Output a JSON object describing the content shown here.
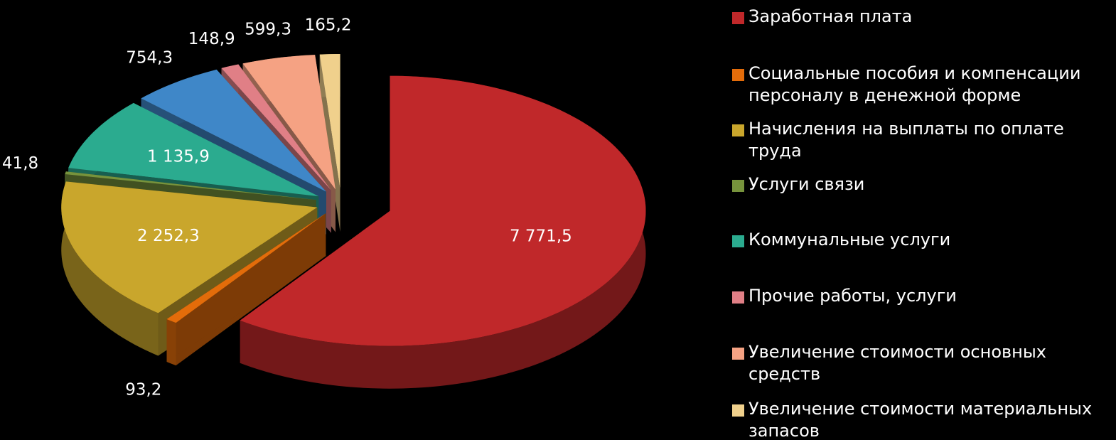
{
  "chart_data": {
    "type": "pie3d",
    "categories": [
      "Заработная плата",
      "Социальные пособия и компенсации персоналу в денежной форме",
      "Начисления на выплаты по оплате труда",
      "Услуги связи",
      "Коммунальные услуги",
      null,
      "Прочие работы, услуги",
      "Увеличение стоимости основных средств",
      "Увеличение стоимости материальных запасов"
    ],
    "values": [
      7771.5,
      93.2,
      2252.3,
      41.8,
      1135.9,
      754.3,
      148.9,
      599.3,
      165.2
    ],
    "value_labels": [
      "7 771,5",
      "93,2",
      "2 252,3",
      "41,8",
      "1 135,9",
      "754,3",
      "148,9",
      "599,3",
      "165,2"
    ],
    "colors": [
      "#c0282a",
      "#e36c0a",
      "#c9a62c",
      "#77933c",
      "#2bab8f",
      "#3f87c8",
      "#e07f86",
      "#f5a283",
      "#f0d08c"
    ],
    "legend": "right"
  }
}
